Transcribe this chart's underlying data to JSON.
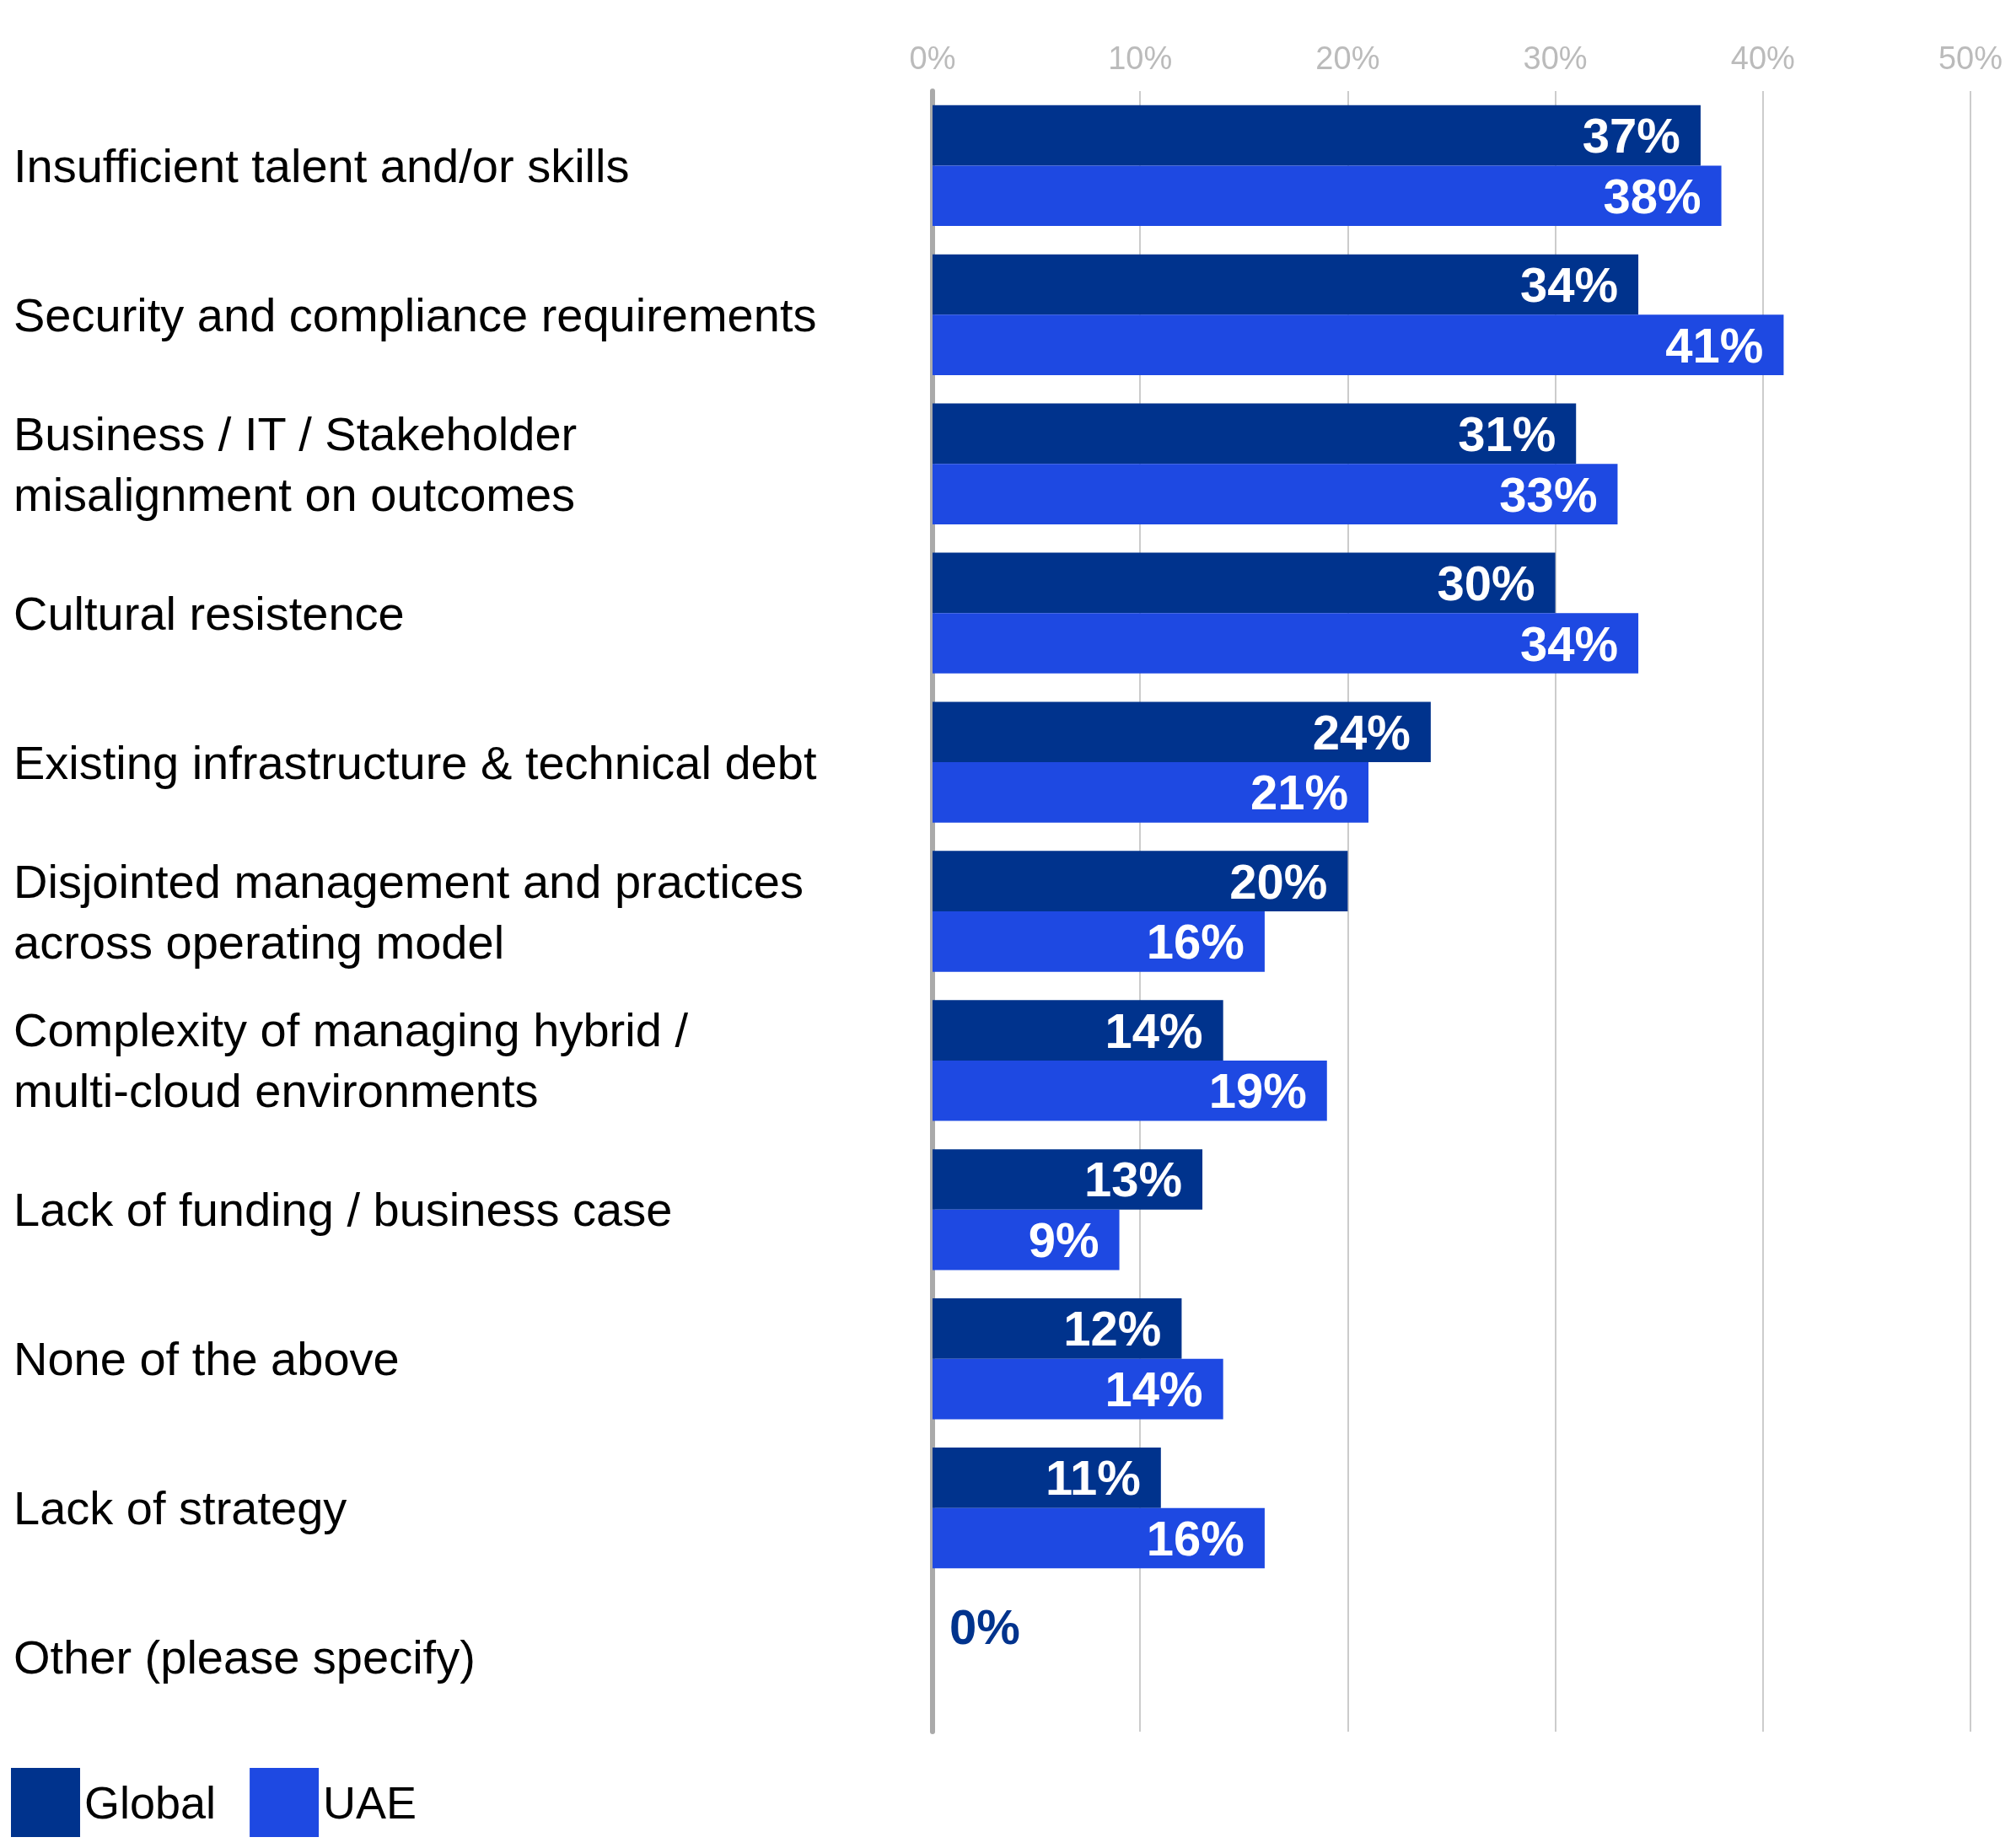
{
  "chart_data": {
    "type": "bar",
    "orientation": "horizontal",
    "categories": [
      "Insufficient talent and/or skills",
      "Security and compliance requirements",
      "Business / IT / Stakeholder misalignment on outcomes",
      "Cultural resistence",
      "Existing infrastructure & technical debt",
      "Disjointed management and practices across operating model",
      "Complexity of managing hybrid / multi-cloud environments",
      "Lack of funding / business case",
      "None of the above",
      "Lack of strategy",
      "Other (please specify)"
    ],
    "series": [
      {
        "name": "Global",
        "color": "#00338d",
        "values": [
          37,
          34,
          31,
          30,
          24,
          20,
          14,
          13,
          12,
          11,
          0
        ],
        "value_labels": [
          "37%",
          "34%",
          "31%",
          "30%",
          "24%",
          "20%",
          "14%",
          "13%",
          "12%",
          "11%",
          "0%"
        ]
      },
      {
        "name": "UAE",
        "color": "#1e49e2",
        "values": [
          38,
          41,
          33,
          34,
          21,
          16,
          19,
          9,
          14,
          16,
          null
        ],
        "value_labels": [
          "38%",
          "41%",
          "33%",
          "34%",
          "21%",
          "16%",
          "19%",
          "9%",
          "14%",
          "16%",
          null
        ]
      }
    ],
    "xlim": [
      0,
      50
    ],
    "xticks": [
      {
        "value": 0,
        "label": "0%"
      },
      {
        "value": 10,
        "label": "10%"
      },
      {
        "value": 20,
        "label": "20%"
      },
      {
        "value": 30,
        "label": "30%"
      },
      {
        "value": 40,
        "label": "40%"
      },
      {
        "value": 50,
        "label": "50%"
      }
    ],
    "grid": "x",
    "legend": "bottom left"
  }
}
